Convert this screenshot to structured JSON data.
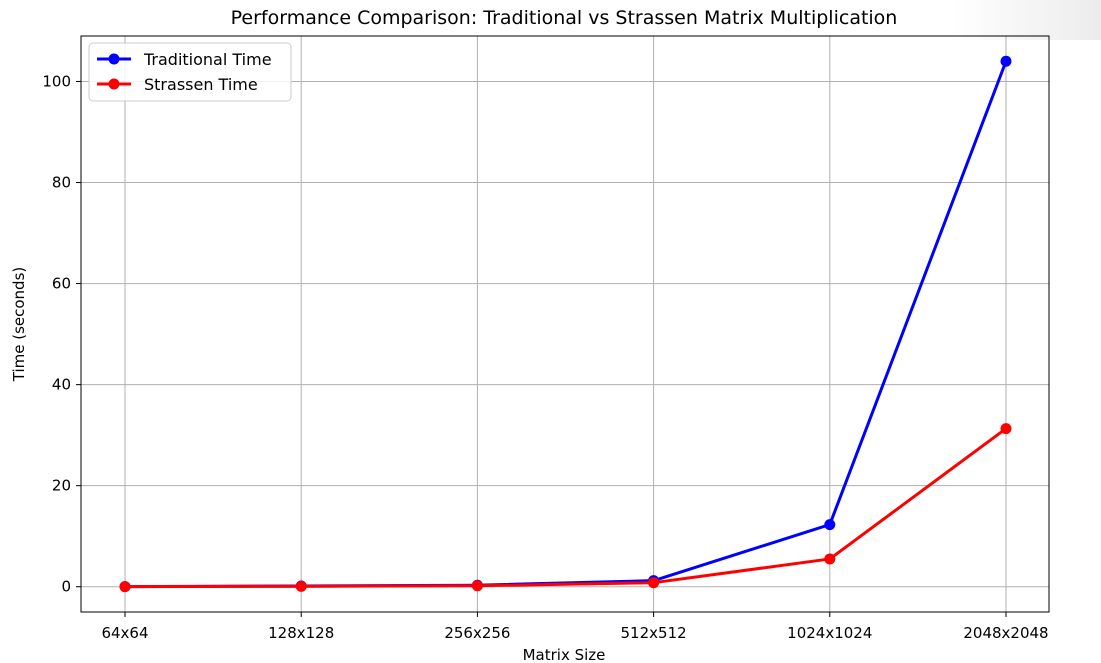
{
  "chart_data": {
    "type": "line",
    "title": "Performance Comparison: Traditional vs Strassen Matrix Multiplication",
    "xlabel": "Matrix Size",
    "ylabel": "Time (seconds)",
    "categories": [
      "64x64",
      "128x128",
      "256x256",
      "512x512",
      "1024x1024",
      "2048x2048"
    ],
    "ylim": [
      -5,
      109
    ],
    "yticks": [
      0,
      20,
      40,
      60,
      80,
      100
    ],
    "grid": true,
    "legend_position": "top-left",
    "series": [
      {
        "name": "Traditional Time",
        "color": "#0000ff",
        "values": [
          0.02,
          0.15,
          0.3,
          1.2,
          12.3,
          104.0
        ]
      },
      {
        "name": "Strassen Time",
        "color": "#ff0000",
        "values": [
          0.01,
          0.08,
          0.2,
          0.8,
          5.5,
          31.3
        ]
      }
    ]
  }
}
